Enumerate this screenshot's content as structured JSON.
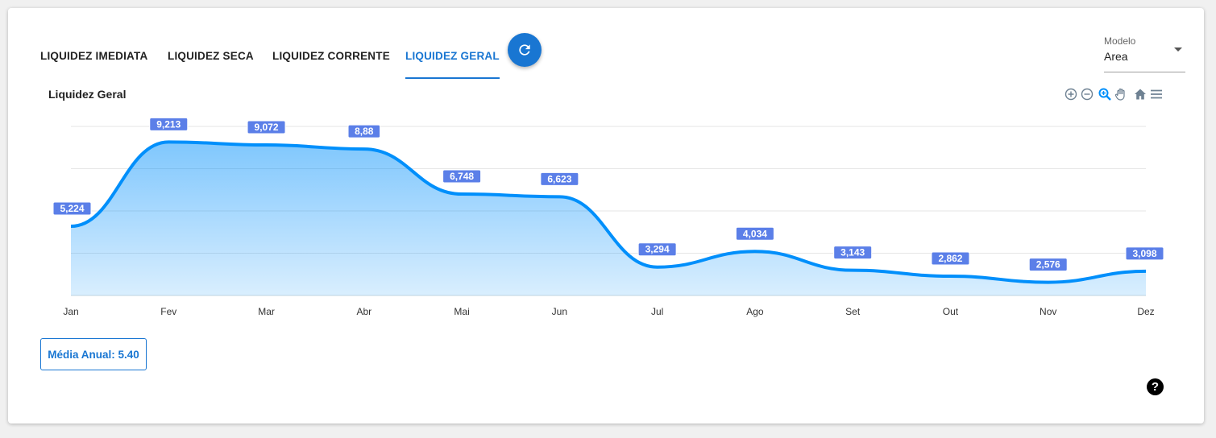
{
  "tabs": [
    {
      "label": "LIQUIDEZ IMEDIATA"
    },
    {
      "label": "LIQUIDEZ SECA"
    },
    {
      "label": "LIQUIDEZ CORRENTE"
    },
    {
      "label": "LIQUIDEZ GERAL"
    }
  ],
  "active_tab": "LIQUIDEZ GERAL",
  "refresh_icon": "refresh-icon",
  "model_select": {
    "label": "Modelo",
    "value": "Area"
  },
  "toolbar_icons": [
    "zoom-in-icon",
    "zoom-out-icon",
    "selection-zoom-icon",
    "pan-hand-icon",
    "home-icon",
    "menu-icon"
  ],
  "average": {
    "text": "Média Anual: 5.40"
  },
  "help_icon": {
    "name": "help-icon",
    "glyph": "?"
  },
  "colors": {
    "accent": "#1976d2",
    "series": "#008ffb",
    "data_label_bg": "#5b7fe8"
  },
  "chart_data": {
    "type": "area",
    "title": "Liquidez Geral",
    "xlabel": "",
    "ylabel": "",
    "categories": [
      "Jan",
      "Fev",
      "Mar",
      "Abr",
      "Mai",
      "Jun",
      "Jul",
      "Ago",
      "Set",
      "Out",
      "Nov",
      "Dez"
    ],
    "series": [
      {
        "values": [
          5.224,
          9.213,
          9.072,
          8.88,
          6.748,
          6.623,
          3.294,
          4.034,
          3.143,
          2.862,
          2.576,
          3.098
        ],
        "labels": [
          "5,224",
          "9,213",
          "9,072",
          "8,88",
          "6,748",
          "6,623",
          "3,294",
          "4,034",
          "3,143",
          "2,862",
          "2,576",
          "3,098"
        ]
      }
    ],
    "ylim": [
      1.95,
      9.95
    ],
    "grid": true,
    "legend": "none"
  }
}
